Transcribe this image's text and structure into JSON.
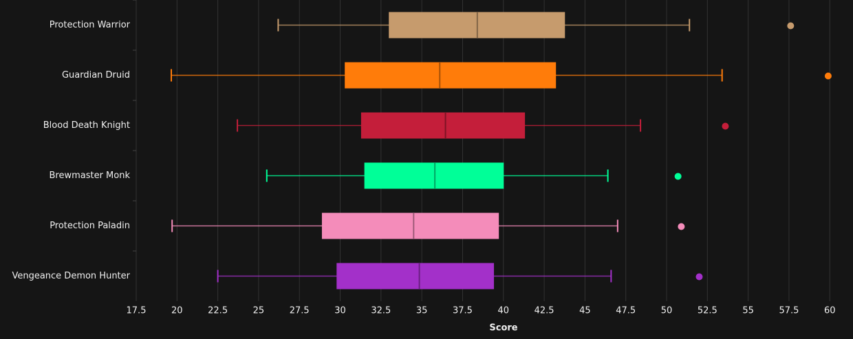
{
  "chart_data": {
    "type": "box",
    "x_label": "Score",
    "xlim": [
      17.5,
      61
    ],
    "xticks": [
      17.5,
      20,
      22.5,
      25,
      27.5,
      30,
      32.5,
      35,
      37.5,
      40,
      42.5,
      45,
      47.5,
      50,
      52.5,
      55,
      57.5,
      60
    ],
    "grid": true,
    "boxes": [
      {
        "name": "Protection Warrior",
        "color": "#c69b6d",
        "low": 26.2,
        "q1": 33.0,
        "median": 38.4,
        "q3": 43.75,
        "high": 51.4,
        "outliers": [
          57.6
        ]
      },
      {
        "name": "Guardian Druid",
        "color": "#ff7c0a",
        "low": 19.65,
        "q1": 30.3,
        "median": 36.1,
        "q3": 43.2,
        "high": 53.4,
        "outliers": [
          59.9
        ]
      },
      {
        "name": "Blood Death Knight",
        "color": "#c41e3a",
        "low": 23.7,
        "q1": 31.3,
        "median": 36.45,
        "q3": 41.3,
        "high": 48.4,
        "outliers": [
          53.6
        ]
      },
      {
        "name": "Brewmaster Monk",
        "color": "#00ff98",
        "low": 25.5,
        "q1": 31.5,
        "median": 35.8,
        "q3": 40.0,
        "high": 46.4,
        "outliers": [
          50.7
        ]
      },
      {
        "name": "Protection Paladin",
        "color": "#f48cba",
        "low": 19.7,
        "q1": 28.9,
        "median": 34.5,
        "q3": 39.7,
        "high": 47.0,
        "outliers": [
          50.9
        ]
      },
      {
        "name": "Vengeance Demon Hunter",
        "color": "#a330c9",
        "low": 22.5,
        "q1": 29.8,
        "median": 34.85,
        "q3": 39.4,
        "high": 46.6,
        "outliers": [
          52.0
        ]
      }
    ]
  }
}
